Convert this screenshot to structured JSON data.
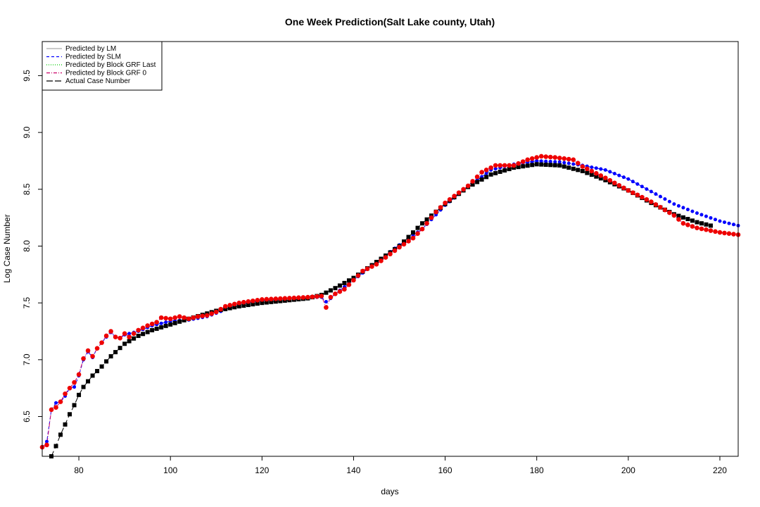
{
  "chart_data": {
    "type": "line",
    "title": "One Week Prediction(Salt Lake county, Utah)",
    "xlabel": "days",
    "ylabel": "Log Case Number",
    "xlim": [
      72,
      224
    ],
    "ylim": [
      6.15,
      9.8
    ],
    "xticks": [
      80,
      100,
      120,
      140,
      160,
      180,
      200,
      220
    ],
    "yticks": [
      6.5,
      7.0,
      7.5,
      8.0,
      8.5,
      9.0,
      9.5
    ],
    "legend_position": "top-left",
    "grid": false,
    "legend": [
      {
        "label": "Predicted by LM",
        "color": "#aaaaaa",
        "dash": "solid"
      },
      {
        "label": "Predicted by SLM",
        "color": "#0000ff",
        "dash": "dashed"
      },
      {
        "label": "Predicted by Block GRF Last",
        "color": "#00cc00",
        "dash": "dotted"
      },
      {
        "label": "Predicted by Block GRF 0",
        "color": "#cc0066",
        "dash": "dotdash"
      },
      {
        "label": "Actual Case Number",
        "color": "#000000",
        "dash": "longdash"
      }
    ],
    "actual_knots": [
      [
        74,
        6.15
      ],
      [
        75,
        6.24
      ],
      [
        76,
        6.34
      ],
      [
        77,
        6.43
      ],
      [
        78,
        6.52
      ],
      [
        79,
        6.6
      ],
      [
        80,
        6.69
      ],
      [
        81,
        6.76
      ],
      [
        82,
        6.81
      ],
      [
        83,
        6.86
      ],
      [
        85,
        6.94
      ],
      [
        87,
        7.03
      ],
      [
        90,
        7.14
      ],
      [
        93,
        7.21
      ],
      [
        96,
        7.26
      ],
      [
        100,
        7.31
      ],
      [
        104,
        7.36
      ],
      [
        110,
        7.43
      ],
      [
        115,
        7.47
      ],
      [
        120,
        7.5
      ],
      [
        125,
        7.52
      ],
      [
        130,
        7.54
      ],
      [
        133,
        7.57
      ],
      [
        136,
        7.63
      ],
      [
        140,
        7.72
      ],
      [
        145,
        7.86
      ],
      [
        150,
        8.0
      ],
      [
        155,
        8.2
      ],
      [
        160,
        8.37
      ],
      [
        165,
        8.52
      ],
      [
        170,
        8.63
      ],
      [
        175,
        8.69
      ],
      [
        180,
        8.72
      ],
      [
        185,
        8.71
      ],
      [
        190,
        8.66
      ],
      [
        195,
        8.58
      ],
      [
        200,
        8.49
      ],
      [
        205,
        8.38
      ],
      [
        210,
        8.28
      ],
      [
        215,
        8.21
      ],
      [
        218,
        8.18
      ]
    ],
    "red_knots": [
      [
        72,
        6.23
      ],
      [
        73,
        6.25
      ],
      [
        74,
        6.56
      ],
      [
        75,
        6.58
      ],
      [
        76,
        6.63
      ],
      [
        77,
        6.7
      ],
      [
        78,
        6.75
      ],
      [
        79,
        6.8
      ],
      [
        80,
        6.87
      ],
      [
        81,
        7.01
      ],
      [
        82,
        7.08
      ],
      [
        83,
        7.03
      ],
      [
        84,
        7.1
      ],
      [
        85,
        7.15
      ],
      [
        86,
        7.21
      ],
      [
        87,
        7.25
      ],
      [
        88,
        7.2
      ],
      [
        89,
        7.19
      ],
      [
        90,
        7.23
      ],
      [
        91,
        7.2
      ],
      [
        93,
        7.26
      ],
      [
        95,
        7.3
      ],
      [
        97,
        7.33
      ],
      [
        98,
        7.37
      ],
      [
        100,
        7.36
      ],
      [
        102,
        7.38
      ],
      [
        104,
        7.36
      ],
      [
        106,
        7.38
      ],
      [
        108,
        7.39
      ],
      [
        110,
        7.42
      ],
      [
        112,
        7.47
      ],
      [
        115,
        7.5
      ],
      [
        120,
        7.53
      ],
      [
        125,
        7.54
      ],
      [
        130,
        7.55
      ],
      [
        133,
        7.56
      ],
      [
        134,
        7.46
      ],
      [
        135,
        7.55
      ],
      [
        136,
        7.58
      ],
      [
        138,
        7.62
      ],
      [
        140,
        7.7
      ],
      [
        142,
        7.78
      ],
      [
        145,
        7.84
      ],
      [
        148,
        7.93
      ],
      [
        150,
        7.99
      ],
      [
        153,
        8.07
      ],
      [
        155,
        8.15
      ],
      [
        158,
        8.3
      ],
      [
        160,
        8.38
      ],
      [
        165,
        8.53
      ],
      [
        168,
        8.65
      ],
      [
        171,
        8.71
      ],
      [
        175,
        8.71
      ],
      [
        178,
        8.76
      ],
      [
        181,
        8.79
      ],
      [
        184,
        8.78
      ],
      [
        188,
        8.76
      ],
      [
        190,
        8.7
      ],
      [
        195,
        8.6
      ],
      [
        200,
        8.49
      ],
      [
        205,
        8.39
      ],
      [
        210,
        8.27
      ],
      [
        212,
        8.2
      ],
      [
        215,
        8.16
      ],
      [
        220,
        8.12
      ],
      [
        224,
        8.1
      ]
    ],
    "blue_knots": [
      [
        72,
        6.23
      ],
      [
        73,
        6.28
      ],
      [
        74,
        6.56
      ],
      [
        75,
        6.62
      ],
      [
        76,
        6.63
      ],
      [
        77,
        6.68
      ],
      [
        78,
        6.75
      ],
      [
        79,
        6.76
      ],
      [
        80,
        6.86
      ],
      [
        81,
        7.0
      ],
      [
        82,
        7.07
      ],
      [
        83,
        7.02
      ],
      [
        84,
        7.1
      ],
      [
        85,
        7.15
      ],
      [
        86,
        7.2
      ],
      [
        87,
        7.24
      ],
      [
        88,
        7.2
      ],
      [
        89,
        7.19
      ],
      [
        90,
        7.22
      ],
      [
        93,
        7.25
      ],
      [
        96,
        7.3
      ],
      [
        100,
        7.34
      ],
      [
        104,
        7.35
      ],
      [
        108,
        7.38
      ],
      [
        110,
        7.41
      ],
      [
        115,
        7.49
      ],
      [
        120,
        7.52
      ],
      [
        125,
        7.53
      ],
      [
        130,
        7.55
      ],
      [
        133,
        7.55
      ],
      [
        134,
        7.51
      ],
      [
        135,
        7.54
      ],
      [
        136,
        7.58
      ],
      [
        140,
        7.7
      ],
      [
        145,
        7.86
      ],
      [
        150,
        8.01
      ],
      [
        155,
        8.15
      ],
      [
        160,
        8.36
      ],
      [
        165,
        8.52
      ],
      [
        170,
        8.67
      ],
      [
        175,
        8.72
      ],
      [
        180,
        8.75
      ],
      [
        185,
        8.74
      ],
      [
        190,
        8.71
      ],
      [
        195,
        8.67
      ],
      [
        200,
        8.59
      ],
      [
        205,
        8.48
      ],
      [
        210,
        8.37
      ],
      [
        215,
        8.29
      ],
      [
        220,
        8.22
      ],
      [
        224,
        8.18
      ]
    ]
  }
}
